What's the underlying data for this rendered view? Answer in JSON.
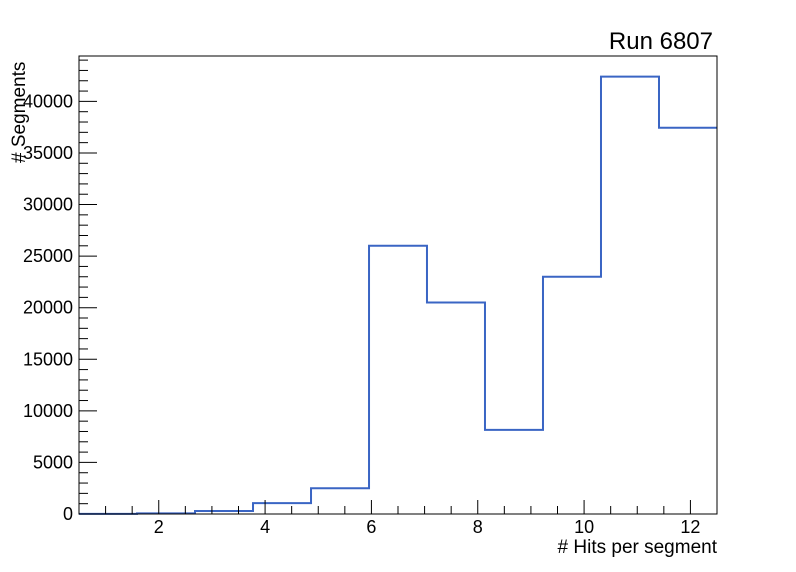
{
  "title": "Run 6807",
  "chart_data": {
    "type": "step-histogram",
    "title": "Run 6807",
    "xlabel": "# Hits per segment",
    "ylabel": "# Segments",
    "xlim": [
      0.5,
      12.5
    ],
    "ylim": [
      0,
      44400
    ],
    "x_major_ticks": [
      2,
      4,
      6,
      8,
      10,
      12
    ],
    "x_minor_step": 0.5,
    "y_major_ticks": [
      0,
      5000,
      10000,
      15000,
      20000,
      25000,
      30000,
      35000,
      40000
    ],
    "y_minor_step": 1000,
    "bin_edges": [
      0.5,
      1.591,
      2.682,
      3.773,
      4.864,
      5.955,
      7.045,
      8.136,
      9.227,
      10.318,
      11.409,
      12.5
    ],
    "values": [
      10,
      60,
      290,
      1050,
      2500,
      26000,
      20500,
      8150,
      23000,
      42400,
      37450
    ],
    "grid": false,
    "legend": null,
    "line_color": "#3a65c4",
    "frame_color": "#000000",
    "background_color": "#ffffff"
  }
}
